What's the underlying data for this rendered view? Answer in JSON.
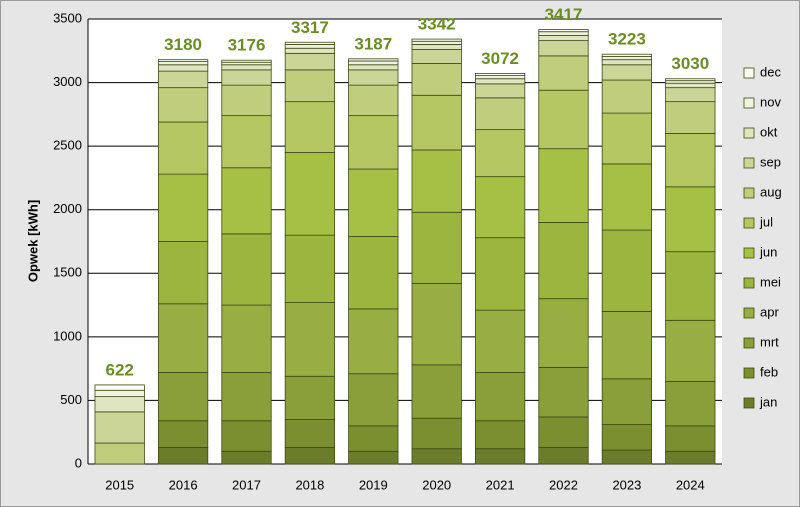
{
  "chart_data": {
    "type": "bar",
    "stacked": true,
    "y_label": "Opwek [kWh]",
    "categories": [
      "2015",
      "2016",
      "2017",
      "2018",
      "2019",
      "2020",
      "2021",
      "2022",
      "2023",
      "2024"
    ],
    "totals": [
      622,
      3180,
      3176,
      3317,
      3187,
      3342,
      3072,
      3417,
      3223,
      3030
    ],
    "series": [
      {
        "name": "jan",
        "color": "#6b7d2a",
        "values": [
          null,
          130,
          100,
          130,
          100,
          120,
          120,
          130,
          110,
          100
        ]
      },
      {
        "name": "feb",
        "color": "#7b8f30",
        "values": [
          null,
          210,
          240,
          220,
          200,
          240,
          220,
          240,
          200,
          200
        ]
      },
      {
        "name": "mrt",
        "color": "#8a9e3a",
        "values": [
          null,
          380,
          380,
          340,
          410,
          420,
          380,
          390,
          360,
          350
        ]
      },
      {
        "name": "apr",
        "color": "#98ad42",
        "values": [
          null,
          540,
          530,
          580,
          510,
          640,
          490,
          540,
          530,
          480
        ]
      },
      {
        "name": "mei",
        "color": "#9bb53e",
        "values": [
          null,
          490,
          560,
          530,
          570,
          560,
          570,
          600,
          640,
          540
        ]
      },
      {
        "name": "jun",
        "color": "#a6c046",
        "values": [
          null,
          530,
          520,
          650,
          530,
          490,
          480,
          580,
          520,
          510
        ]
      },
      {
        "name": "jul",
        "color": "#b5c763",
        "values": [
          null,
          410,
          410,
          400,
          420,
          430,
          370,
          460,
          400,
          420
        ]
      },
      {
        "name": "aug",
        "color": "#bfcd7c",
        "values": [
          165,
          270,
          240,
          250,
          240,
          250,
          250,
          270,
          260,
          250
        ]
      },
      {
        "name": "sep",
        "color": "#cbd598",
        "values": [
          245,
          130,
          120,
          130,
          120,
          110,
          110,
          120,
          120,
          110
        ]
      },
      {
        "name": "okt",
        "color": "#dfe5c0",
        "values": [
          120,
          50,
          40,
          40,
          40,
          40,
          40,
          40,
          40,
          35
        ]
      },
      {
        "name": "nov",
        "color": "#f0f2e0",
        "values": [
          50,
          25,
          20,
          30,
          30,
          25,
          25,
          30,
          25,
          20
        ]
      },
      {
        "name": "dec",
        "color": "#fbfbf2",
        "values": [
          42,
          15,
          16,
          17,
          17,
          17,
          17,
          17,
          18,
          15
        ]
      }
    ],
    "ylim": [
      0,
      3500
    ],
    "yticks": [
      0,
      500,
      1000,
      1500,
      2000,
      2500,
      3000,
      3500
    ],
    "grid": true,
    "legend": "right",
    "label_color": "#6b8e23"
  }
}
